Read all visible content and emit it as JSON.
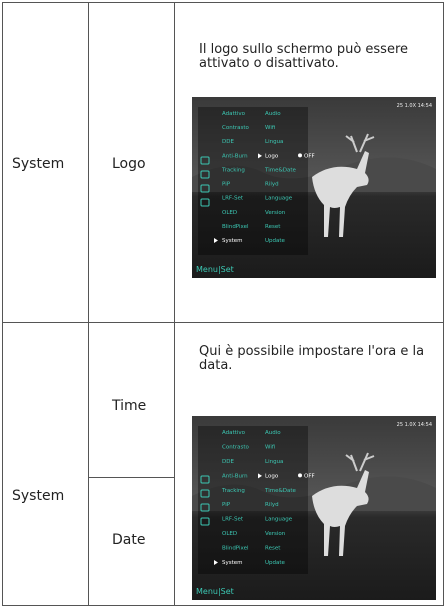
{
  "rows": [
    {
      "section": "System",
      "labels": [
        "Logo"
      ],
      "description": "Il logo sullo schermo può essere attivato o disattivato.",
      "screenshot": {
        "status": "25 1.0X 14:54",
        "menu_left": [
          "Adattivo",
          "Contrasto",
          "DDE",
          "Anti-Burn",
          "Tracking",
          "PiP",
          "LRF-Set",
          "OLED",
          "BlindPixel",
          "System"
        ],
        "menu_right": [
          "Audio",
          "Wifi",
          "Lingua",
          "Logo",
          "Time&Date",
          "Rilyd",
          "Language",
          "Version",
          "Reset",
          "Update"
        ],
        "toggle": "OFF",
        "footer": "Menu|Set"
      }
    },
    {
      "section": "System",
      "labels": [
        "Time",
        "Date"
      ],
      "description": "Qui è possibile impostare l'ora e la data.",
      "screenshot": {
        "status": "25 1.0X 14:54",
        "menu_left": [
          "Adattivo",
          "Contrasto",
          "DDE",
          "Anti-Burn",
          "Tracking",
          "PiP",
          "LRF-Set",
          "OLED",
          "BlindPixel",
          "System"
        ],
        "menu_right": [
          "Audio",
          "Wifi",
          "Lingua",
          "Logo",
          "Time&Date",
          "Rilyd",
          "Language",
          "Version",
          "Reset",
          "Update"
        ],
        "toggle": "OFF",
        "footer": "Menu|Set"
      }
    }
  ]
}
